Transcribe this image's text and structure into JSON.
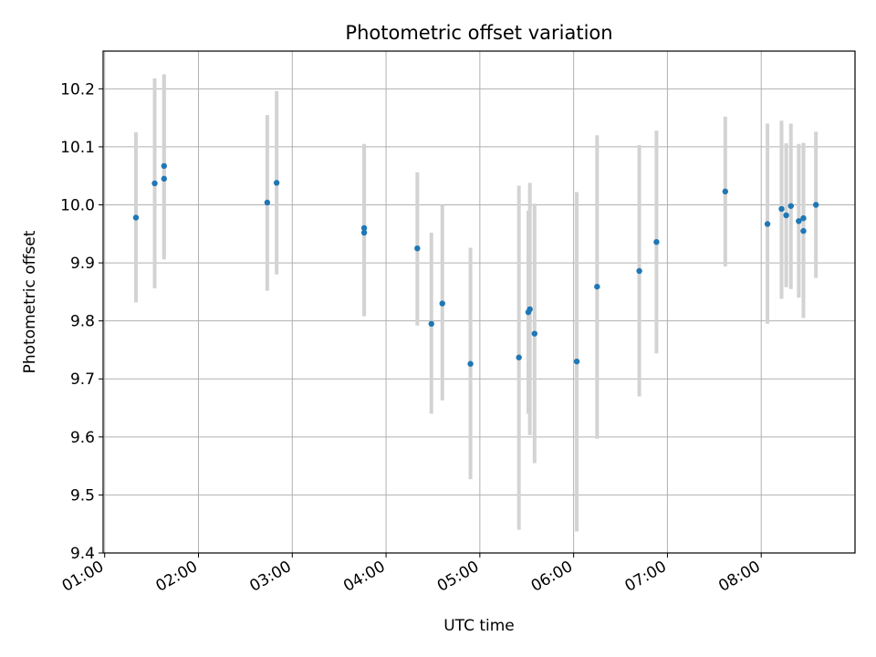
{
  "chart_data": {
    "type": "scatter",
    "title": "Photometric offset variation",
    "xlabel": "UTC time",
    "ylabel": "Photometric offset",
    "x_axis_type": "time",
    "xlim": [
      "00:59",
      "09:00"
    ],
    "ylim": [
      9.4,
      10.265
    ],
    "x_ticks": [
      "01:00",
      "02:00",
      "03:00",
      "04:00",
      "05:00",
      "06:00",
      "07:00",
      "08:00"
    ],
    "y_ticks": [
      9.4,
      9.5,
      9.6,
      9.7,
      9.8,
      9.9,
      10.0,
      10.1,
      10.2
    ],
    "y_tick_labels": [
      "9.4",
      "9.5",
      "9.6",
      "9.7",
      "9.8",
      "9.9",
      "10.0",
      "10.1",
      "10.2"
    ],
    "grid": true,
    "marker_color": "#1f77b4",
    "errorbar_color": "#d3d3d3",
    "points": [
      {
        "x": "01:20",
        "y": 9.978,
        "ylow": 9.832,
        "yhigh": 10.125
      },
      {
        "x": "01:32",
        "y": 10.037,
        "ylow": 9.856,
        "yhigh": 10.218
      },
      {
        "x": "01:38",
        "y": 10.045,
        "ylow": 9.906,
        "yhigh": 10.225
      },
      {
        "x": "01:38",
        "y": 10.067,
        "ylow": 9.91,
        "yhigh": 10.223
      },
      {
        "x": "02:44",
        "y": 10.004,
        "ylow": 9.852,
        "yhigh": 10.155
      },
      {
        "x": "02:50",
        "y": 10.038,
        "ylow": 9.88,
        "yhigh": 10.196
      },
      {
        "x": "03:46",
        "y": 9.952,
        "ylow": 9.808,
        "yhigh": 10.1
      },
      {
        "x": "03:46",
        "y": 9.96,
        "ylow": 9.812,
        "yhigh": 10.105
      },
      {
        "x": "04:20",
        "y": 9.925,
        "ylow": 9.792,
        "yhigh": 10.056
      },
      {
        "x": "04:29",
        "y": 9.795,
        "ylow": 9.64,
        "yhigh": 9.952
      },
      {
        "x": "04:36",
        "y": 9.83,
        "ylow": 9.663,
        "yhigh": 10.0
      },
      {
        "x": "04:54",
        "y": 9.726,
        "ylow": 9.527,
        "yhigh": 9.926
      },
      {
        "x": "05:25",
        "y": 9.737,
        "ylow": 9.44,
        "yhigh": 10.033
      },
      {
        "x": "05:31",
        "y": 9.815,
        "ylow": 9.64,
        "yhigh": 9.99
      },
      {
        "x": "05:32",
        "y": 9.82,
        "ylow": 9.603,
        "yhigh": 10.038
      },
      {
        "x": "05:35",
        "y": 9.778,
        "ylow": 9.555,
        "yhigh": 10.002
      },
      {
        "x": "06:02",
        "y": 9.73,
        "ylow": 9.437,
        "yhigh": 10.022
      },
      {
        "x": "06:15",
        "y": 9.859,
        "ylow": 9.597,
        "yhigh": 10.12
      },
      {
        "x": "06:42",
        "y": 9.886,
        "ylow": 9.67,
        "yhigh": 10.103
      },
      {
        "x": "06:53",
        "y": 9.936,
        "ylow": 9.744,
        "yhigh": 10.128
      },
      {
        "x": "07:37",
        "y": 10.023,
        "ylow": 9.894,
        "yhigh": 10.152
      },
      {
        "x": "08:04",
        "y": 9.967,
        "ylow": 9.795,
        "yhigh": 10.14
      },
      {
        "x": "08:13",
        "y": 9.993,
        "ylow": 9.838,
        "yhigh": 10.145
      },
      {
        "x": "08:16",
        "y": 9.982,
        "ylow": 9.858,
        "yhigh": 10.106
      },
      {
        "x": "08:19",
        "y": 9.998,
        "ylow": 9.855,
        "yhigh": 10.14
      },
      {
        "x": "08:24",
        "y": 9.972,
        "ylow": 9.84,
        "yhigh": 10.105
      },
      {
        "x": "08:27",
        "y": 9.977,
        "ylow": 9.848,
        "yhigh": 10.107
      },
      {
        "x": "08:27",
        "y": 9.955,
        "ylow": 9.805,
        "yhigh": 10.104
      },
      {
        "x": "08:35",
        "y": 10.0,
        "ylow": 9.874,
        "yhigh": 10.126
      }
    ]
  }
}
